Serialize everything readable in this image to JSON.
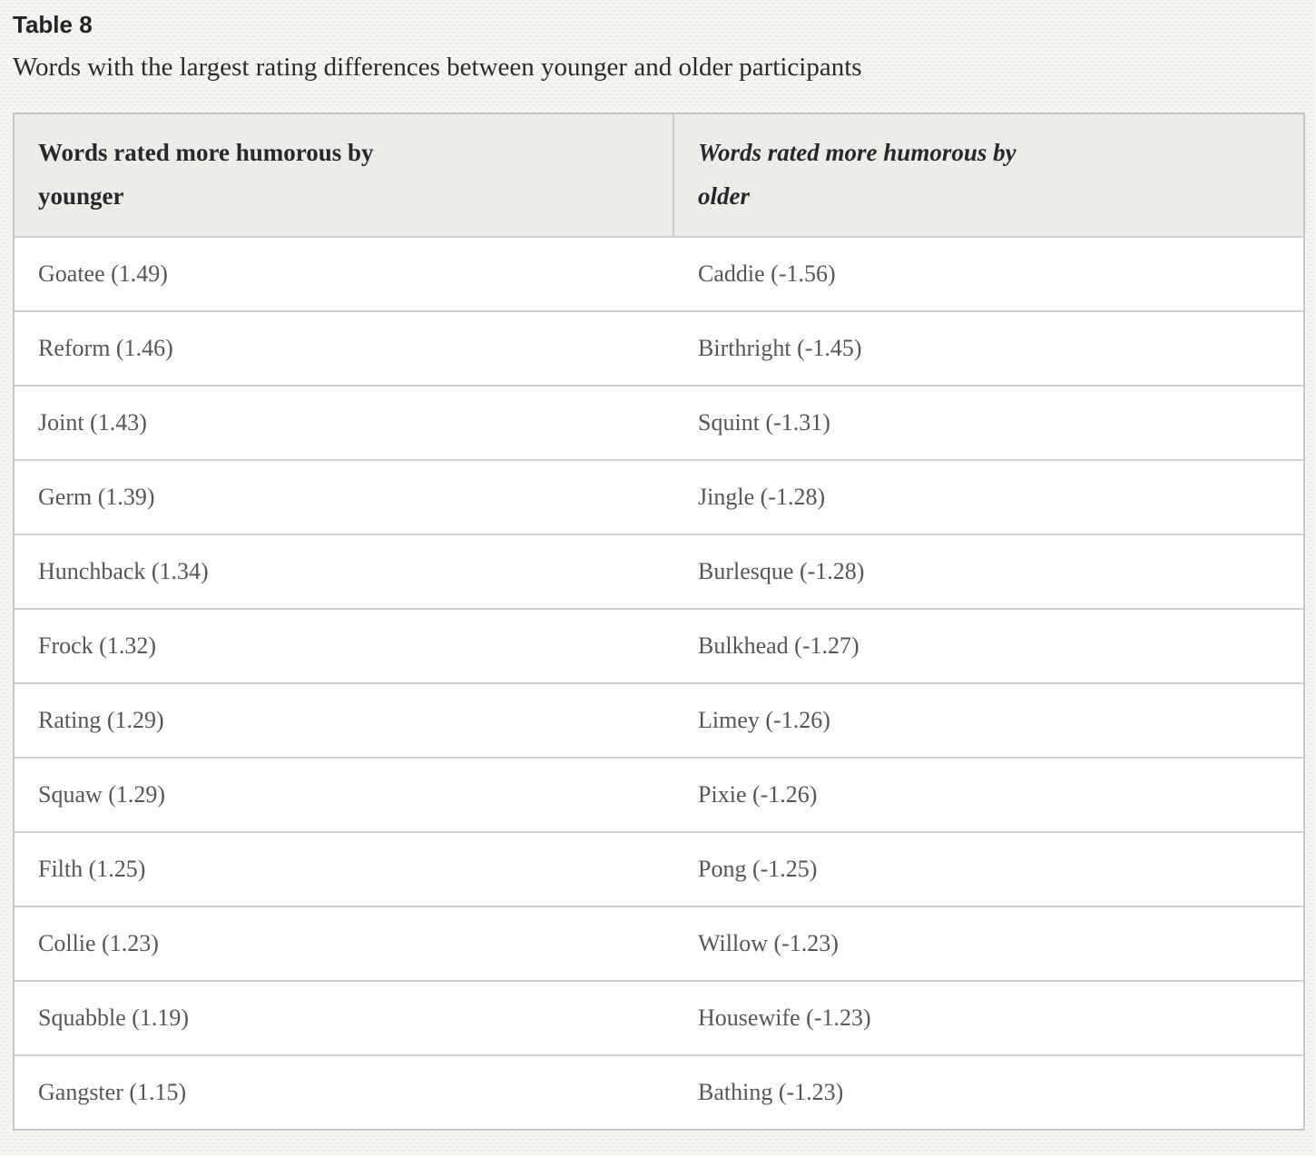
{
  "caption": {
    "label": "Table 8",
    "text": "Words with the largest rating differences between younger and older participants"
  },
  "table": {
    "columns": [
      {
        "id": "younger",
        "label": "Words rated more humorous by\nyounger"
      },
      {
        "id": "older",
        "label": "Words rated more humorous by\nolder"
      }
    ],
    "rows": [
      {
        "younger": "Goatee (1.49)",
        "older": "Caddie (-1.56)"
      },
      {
        "younger": "Reform (1.46)",
        "older": "Birthright (-1.45)"
      },
      {
        "younger": "Joint (1.43)",
        "older": "Squint (-1.31)"
      },
      {
        "younger": "Germ (1.39)",
        "older": "Jingle (-1.28)"
      },
      {
        "younger": "Hunchback (1.34)",
        "older": "Burlesque (-1.28)"
      },
      {
        "younger": "Frock (1.32)",
        "older": "Bulkhead (-1.27)"
      },
      {
        "younger": "Rating (1.29)",
        "older": "Limey (-1.26)"
      },
      {
        "younger": "Squaw (1.29)",
        "older": "Pixie (-1.26)"
      },
      {
        "younger": "Filth (1.25)",
        "older": "Pong (-1.25)"
      },
      {
        "younger": "Collie (1.23)",
        "older": "Willow (-1.23)"
      },
      {
        "younger": "Squabble (1.19)",
        "older": "Housewife (-1.23)"
      },
      {
        "younger": "Gangster (1.15)",
        "older": "Bathing (-1.23)"
      }
    ]
  },
  "colors": {
    "page_background": "#f6f5f2",
    "table_border": "#c7c6c4",
    "header_background": "#edece9",
    "row_divider": "#d4d3d1",
    "heading_text": "#232323",
    "body_text": "#55565a"
  }
}
